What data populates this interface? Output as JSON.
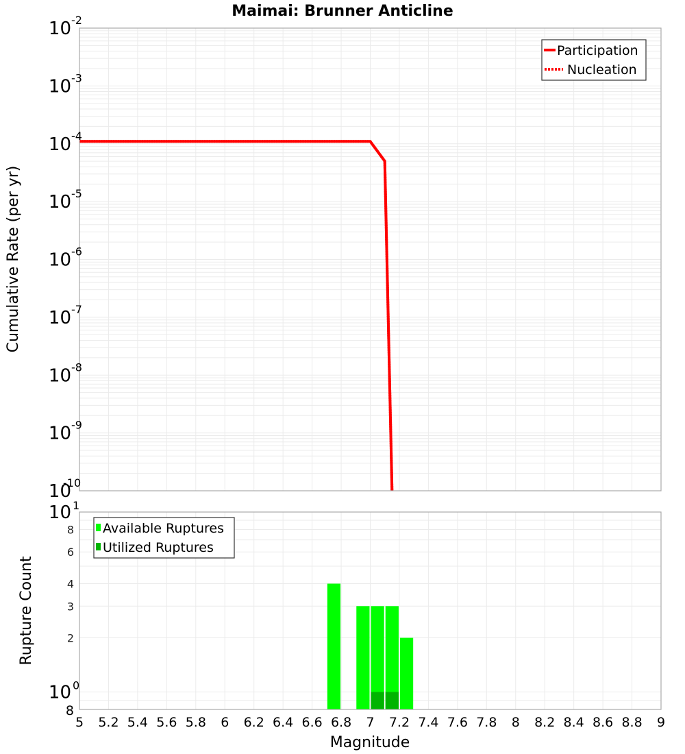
{
  "chart_data": [
    {
      "type": "line",
      "title": "Maimai: Brunner Anticline",
      "xlabel": "Magnitude",
      "ylabel": "Cumulative Rate (per yr)",
      "yscale": "log",
      "xlim": [
        5,
        9
      ],
      "ylim": [
        1e-10,
        0.01
      ],
      "grid": true,
      "legend_position": "top-right",
      "y_tick_labels": [
        "10^-2",
        "10^-3",
        "10^-4",
        "10^-5",
        "10^-6",
        "10^-7",
        "10^-8",
        "10^-9",
        "10^-10"
      ],
      "series": [
        {
          "name": "Participation",
          "style": "solid",
          "color": "#ff0000",
          "x": [
            5.0,
            7.0,
            7.1,
            7.15
          ],
          "y": [
            0.00011,
            0.00011,
            5e-05,
            1e-10
          ]
        },
        {
          "name": "Nucleation",
          "style": "dotted",
          "color": "#ff0000",
          "x": [
            5.0,
            7.0,
            7.1,
            7.15
          ],
          "y": [
            0.00011,
            0.00011,
            5e-05,
            1e-10
          ]
        }
      ]
    },
    {
      "type": "bar",
      "title": "",
      "xlabel": "Magnitude",
      "ylabel": "Rupture Count",
      "yscale": "log",
      "xlim": [
        5,
        9
      ],
      "ylim": [
        0.8,
        10
      ],
      "grid": true,
      "legend_position": "top-left",
      "y_tick_labels": [
        "10^1",
        "8",
        "6",
        "4",
        "3",
        "2",
        "10^0",
        "8"
      ],
      "bin_width": 0.1,
      "series": [
        {
          "name": "Available Ruptures",
          "color": "#00ff00",
          "x": [
            6.75,
            6.95,
            7.05,
            7.15,
            7.25
          ],
          "values": [
            4,
            3,
            3,
            3,
            2
          ]
        },
        {
          "name": "Utilized Ruptures",
          "color": "#00b400",
          "x": [
            7.05,
            7.15
          ],
          "values": [
            1,
            1
          ]
        }
      ]
    }
  ],
  "x_tick_labels": [
    "5",
    "5.2",
    "5.4",
    "5.6",
    "5.8",
    "6",
    "6.2",
    "6.4",
    "6.6",
    "6.8",
    "7",
    "7.2",
    "7.4",
    "7.6",
    "7.8",
    "8",
    "8.2",
    "8.4",
    "8.6",
    "8.8",
    "9"
  ],
  "labels": {
    "title": "Maimai: Brunner Anticline",
    "xlabel": "Magnitude",
    "ylabel_top": "Cumulative Rate (per yr)",
    "ylabel_bottom": "Rupture Count",
    "legend_top": [
      "Participation",
      "Nucleation"
    ],
    "legend_bottom": [
      "Available Ruptures",
      "Utilized Ruptures"
    ]
  },
  "colors": {
    "rate_line": "#ff0000",
    "available": "#00ff00",
    "utilized": "#00b400",
    "grid": "#ebebeb",
    "frame": "#aaaaaa"
  }
}
